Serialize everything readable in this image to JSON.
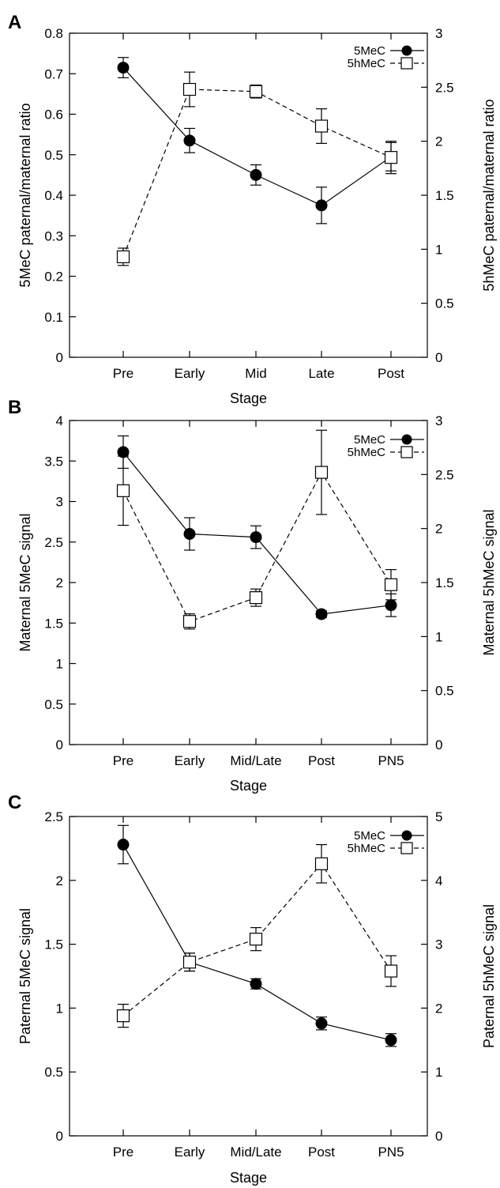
{
  "chart_data": [
    {
      "type": "line",
      "panel_label": "A",
      "categories": [
        "Pre",
        "Early",
        "Mid",
        "Late",
        "Post"
      ],
      "xlabel": "Stage",
      "ylabel": "5MeC paternal/maternal ratio",
      "ylabel_right": "5hMeC paternal/maternal ratio",
      "ylim": [
        0,
        0.8
      ],
      "yticks": [
        "0",
        "0.1",
        "0.2",
        "0.3",
        "0.4",
        "0.5",
        "0.6",
        "0.7",
        "0.8"
      ],
      "ylim_right": [
        0,
        3
      ],
      "yticks_right": [
        "0",
        "0.5",
        "1",
        "1.5",
        "2",
        "2.5",
        "3"
      ],
      "legend_position": "top-right",
      "series": [
        {
          "name": "5MeC",
          "axis": "left",
          "marker": "filled-circle",
          "line": "solid",
          "values": [
            0.715,
            0.535,
            0.45,
            0.375,
            0.495
          ],
          "errors": [
            0.025,
            0.03,
            0.025,
            0.045,
            0.035
          ]
        },
        {
          "name": "5hMeC",
          "axis": "right",
          "marker": "open-square",
          "line": "dashed",
          "values": [
            0.93,
            2.48,
            2.46,
            2.14,
            1.85
          ],
          "errors": [
            0.08,
            0.16,
            0.06,
            0.16,
            0.15
          ]
        }
      ]
    },
    {
      "type": "line",
      "panel_label": "B",
      "categories": [
        "Pre",
        "Early",
        "Mid/Late",
        "Post",
        "PN5"
      ],
      "xlabel": "Stage",
      "ylabel": "Maternal 5MeC signal",
      "ylabel_right": "Maternal 5hMeC signal",
      "ylim": [
        0,
        4
      ],
      "yticks": [
        "0",
        "0.5",
        "1",
        "1.5",
        "2",
        "2.5",
        "3",
        "3.5",
        "4"
      ],
      "ylim_right": [
        0,
        3
      ],
      "yticks_right": [
        "0",
        "0.5",
        "1",
        "1.5",
        "2",
        "2.5",
        "3"
      ],
      "legend_position": "top-right",
      "series": [
        {
          "name": "5MeC",
          "axis": "left",
          "marker": "filled-circle",
          "line": "solid",
          "values": [
            3.61,
            2.6,
            2.56,
            1.61,
            1.72
          ],
          "errors": [
            0.2,
            0.2,
            0.14,
            0.04,
            0.14
          ]
        },
        {
          "name": "5hMeC",
          "axis": "right",
          "marker": "open-square",
          "line": "dashed",
          "values": [
            2.35,
            1.14,
            1.36,
            2.52,
            1.48
          ],
          "errors": [
            0.32,
            0.07,
            0.08,
            0.39,
            0.14
          ]
        }
      ]
    },
    {
      "type": "line",
      "panel_label": "C",
      "categories": [
        "Pre",
        "Early",
        "Mid/Late",
        "Post",
        "PN5"
      ],
      "xlabel": "Stage",
      "ylabel": "Paternal 5MeC signal",
      "ylabel_right": "Paternal 5hMeC signal",
      "ylim": [
        0,
        2.5
      ],
      "yticks": [
        "0",
        "0.5",
        "1",
        "1.5",
        "2",
        "2.5"
      ],
      "ylim_right": [
        0,
        5
      ],
      "yticks_right": [
        "0",
        "1",
        "2",
        "3",
        "4",
        "5"
      ],
      "legend_position": "top-right",
      "series": [
        {
          "name": "5MeC",
          "axis": "left",
          "marker": "filled-circle",
          "line": "solid",
          "values": [
            2.28,
            1.36,
            1.19,
            0.88,
            0.75
          ],
          "errors": [
            0.15,
            0.07,
            0.04,
            0.05,
            0.05
          ]
        },
        {
          "name": "5hMeC",
          "axis": "right",
          "marker": "open-square",
          "line": "dashed",
          "values": [
            1.88,
            2.72,
            3.08,
            4.26,
            2.58
          ],
          "errors": [
            0.18,
            0.14,
            0.18,
            0.3,
            0.24
          ]
        }
      ]
    }
  ]
}
